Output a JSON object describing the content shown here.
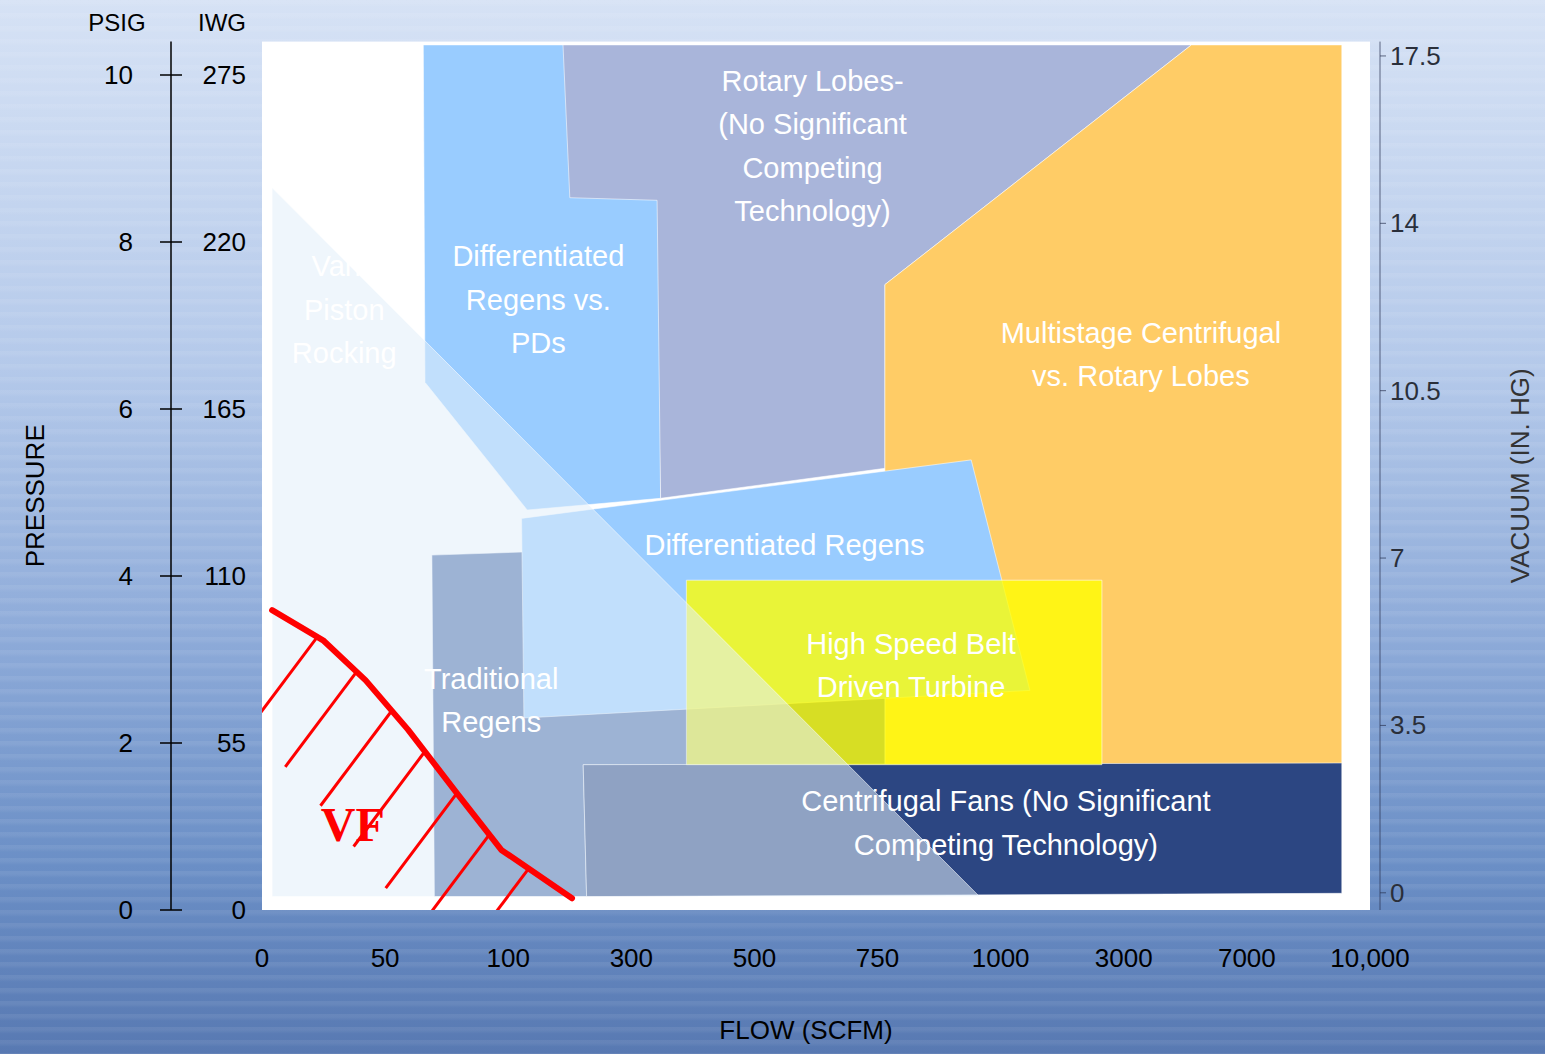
{
  "chart_data": {
    "type": "area_map",
    "x_label": "FLOW (SCFM)",
    "y_label": "PRESSURE",
    "y2_label": "VACUUM (IN. HG)",
    "y_units": "PSIG",
    "y_alt_units": "IWG",
    "xlim": [
      0,
      10000
    ],
    "xticks": [
      0,
      50,
      100,
      300,
      500,
      750,
      1000,
      3000,
      7000,
      {
        "value": 10000,
        "label": "10,000"
      }
    ],
    "ylim": [
      0,
      10.4
    ],
    "yticks": [
      0,
      2,
      4,
      6,
      8,
      10
    ],
    "y_alt_ticks": [
      0,
      {
        "value": 2,
        "label": "55"
      },
      {
        "value": 4,
        "label": "110"
      },
      {
        "value": 6,
        "label": "165"
      },
      {
        "value": 8,
        "label": "220"
      },
      {
        "value": 10,
        "label": "275"
      }
    ],
    "y2lim": [
      -0.36,
      17.8
    ],
    "y2ticks": [
      0,
      3.5,
      7,
      10.5,
      14,
      17.5
    ],
    "series": [
      {
        "type": "area",
        "color": "#99ccff",
        "x": [
          65.5,
          345.7,
          347.6,
          130.9,
          66.2
        ],
        "values": [
          10.36,
          10.36,
          4.93,
          4.79,
          6.32
        ],
        "label": [
          "Differentiated",
          "Regens vs.",
          "PDs"
        ],
        "label_x": 149,
        "label_y": 7.31
      },
      {
        "type": "area",
        "color": "#a9b5da",
        "x": [
          189,
          5197,
          765,
          765,
          347.6,
          341.9,
          200
        ],
        "values": [
          10.36,
          10.36,
          7.49,
          5.29,
          4.93,
          8.5,
          8.53
        ],
        "label": [
          "Rotary Lobes-",
          "(No Significant",
          "Competing",
          "Technology)"
        ],
        "label_x": 618,
        "label_y": 9.15
      },
      {
        "type": "area",
        "color": "#ffcc66",
        "x": [
          5197,
          9314,
          9314,
          765,
          765
        ],
        "values": [
          10.36,
          10.36,
          1.74,
          1.7,
          7.49
        ],
        "label": [
          "Multistage Centrifugal",
          "vs. Rotary Lobes"
        ],
        "label_x": 3557,
        "label_y": 6.65
      },
      {
        "type": "area",
        "color": "#4a6aa6",
        "x": [
          69.0,
          134.5,
          134.5,
          765,
          765,
          221.8,
          227.3,
          70.0
        ],
        "values": [
          4.25,
          4.29,
          2.63,
          2.63,
          1.74,
          1.74,
          0.16,
          0.16
        ],
        "label": [
          "Traditional",
          "Regens"
        ],
        "label_x": 93.1,
        "label_y": 2.51
      },
      {
        "type": "area",
        "color": "#2c4682",
        "x": [
          221.8,
          9314,
          9314,
          227.3
        ],
        "values": [
          1.74,
          1.76,
          0.2,
          0.16
        ],
        "label": [
          "Centrifugal Fans (No Significant",
          "Competing Technology)"
        ],
        "label_x": 1085,
        "label_y": 1.04
      },
      {
        "type": "area",
        "color": "#99ccff",
        "x": [
          121.8,
          940.2,
          1474.6,
          125.5
        ],
        "values": [
          4.69,
          5.39,
          2.63,
          2.3
        ],
        "label": [
          "Differentiated Regens"
        ],
        "label_x": 561,
        "label_y": 4.37
      },
      {
        "type": "area",
        "color": "rgba(255,255,0,0.78)",
        "x": [
          389.5,
          2644,
          2644,
          389.5
        ],
        "values": [
          3.95,
          3.95,
          1.74,
          1.74
        ],
        "label": [
          "High Speed Belt",
          "Driven Turbine"
        ],
        "label_x": 818,
        "label_y": 2.93
      },
      {
        "type": "area",
        "color": "rgba(225,238,250,0.55)",
        "x": [
          4.1,
          957,
          4.1
        ],
        "values": [
          8.65,
          0.16,
          0.16
        ],
        "label": [
          "Vane",
          "Piston",
          "Rocking"
        ],
        "label_x": 33.4,
        "label_y": 7.19
      },
      {
        "type": "boundary",
        "color": "#ff0000",
        "x": [
          4.1,
          24.8,
          42.1,
          59.3,
          79.7,
          97.2,
          203.6
        ],
        "values": [
          3.59,
          3.23,
          2.75,
          2.16,
          1.38,
          0.72,
          0.14
        ],
        "label": [
          "VF"
        ],
        "label_x": 36.9,
        "label_y": 1.02
      }
    ]
  }
}
